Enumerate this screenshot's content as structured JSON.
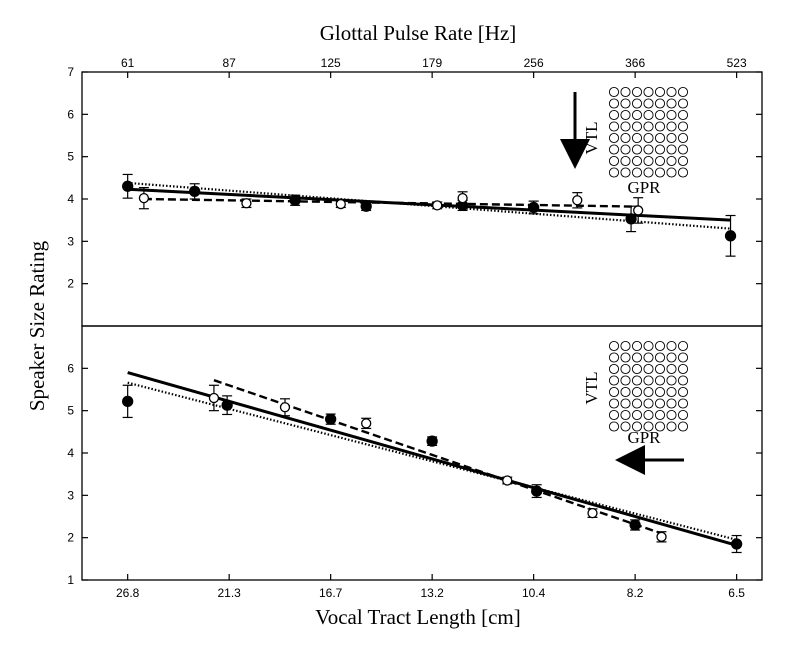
{
  "figure": {
    "top_axis_label": "Glottal Pulse Rate [Hz]",
    "bottom_axis_label": "Vocal Tract Length [cm]",
    "y_axis_label": "Speaker Size Rating",
    "inset_vtl_label": "VTL",
    "inset_gpr_label": "GPR"
  },
  "chart_data": [
    {
      "type": "scatter",
      "panel": "top",
      "varied_dimension": "GPR",
      "x_axis_position": "top",
      "xlabel": "Glottal Pulse Rate [Hz]",
      "ylabel": "Speaker Size Rating",
      "x_ticks": [
        "61",
        "87",
        "125",
        "179",
        "256",
        "366",
        "523"
      ],
      "x_index_range": [
        -0.45,
        6.25
      ],
      "ylim": [
        1,
        7
      ],
      "y_ticks": [
        "7",
        "6",
        "5",
        "4",
        "3",
        "2"
      ],
      "arrow": "down",
      "series": [
        {
          "marker": "filled-circle",
          "x_index": [
            0,
            0.66,
            1.65,
            2.35,
            3.3,
            4.0,
            4.96,
            5.94
          ],
          "y": [
            4.3,
            4.18,
            3.97,
            3.83,
            3.85,
            3.8,
            3.53,
            3.13
          ],
          "err": [
            0.28,
            0.18,
            0.12,
            0.1,
            0.12,
            0.15,
            0.3,
            0.48
          ]
        },
        {
          "marker": "open-circle",
          "x_index": [
            0.16,
            1.17,
            2.1,
            3.05,
            3.3,
            4.43,
            5.03
          ],
          "y": [
            4.02,
            3.9,
            3.88,
            3.85,
            4.02,
            3.97,
            3.73
          ],
          "err": [
            0.25,
            0.1,
            0.08,
            0.08,
            0.15,
            0.18,
            0.3
          ]
        }
      ],
      "fit_lines": [
        {
          "style": "solid",
          "x_index": [
            0,
            5.94
          ],
          "y": [
            4.23,
            3.5
          ]
        },
        {
          "style": "dashed",
          "x_index": [
            0.16,
            5.03
          ],
          "y": [
            4.0,
            3.82
          ]
        },
        {
          "style": "dotted",
          "x_index": [
            0,
            5.94
          ],
          "y": [
            4.38,
            3.3
          ]
        }
      ]
    },
    {
      "type": "scatter",
      "panel": "bottom",
      "varied_dimension": "VTL",
      "x_axis_position": "bottom",
      "xlabel": "Vocal Tract Length [cm]",
      "ylabel": "Speaker Size Rating",
      "x_ticks": [
        "26.8",
        "21.3",
        "16.7",
        "13.2",
        "10.4",
        "8.2",
        "6.5"
      ],
      "x_index_range": [
        -0.45,
        6.25
      ],
      "ylim": [
        1,
        7
      ],
      "y_ticks": [
        "6",
        "5",
        "4",
        "3",
        "2",
        "1"
      ],
      "arrow": "left",
      "series": [
        {
          "marker": "filled-circle",
          "x_index": [
            0,
            0.98,
            2.0,
            3.0,
            4.03,
            5.0,
            6.0
          ],
          "y": [
            5.22,
            5.13,
            4.8,
            4.28,
            3.1,
            2.3,
            1.85
          ],
          "err": [
            0.38,
            0.22,
            0.12,
            0.1,
            0.15,
            0.12,
            0.2
          ]
        },
        {
          "marker": "open-circle",
          "x_index": [
            0.85,
            1.55,
            2.35,
            3.74,
            4.58,
            5.26
          ],
          "y": [
            5.3,
            5.08,
            4.7,
            3.35,
            2.58,
            2.02
          ],
          "err": [
            0.3,
            0.2,
            0.12,
            0.08,
            0.1,
            0.12
          ]
        }
      ],
      "fit_lines": [
        {
          "style": "solid",
          "x_index": [
            0,
            6.0
          ],
          "y": [
            5.9,
            1.82
          ]
        },
        {
          "style": "dashed",
          "x_index": [
            0.85,
            5.26
          ],
          "y": [
            5.72,
            2.1
          ]
        },
        {
          "style": "dotted",
          "x_index": [
            0,
            6.0
          ],
          "y": [
            5.66,
            1.95
          ]
        }
      ]
    }
  ]
}
